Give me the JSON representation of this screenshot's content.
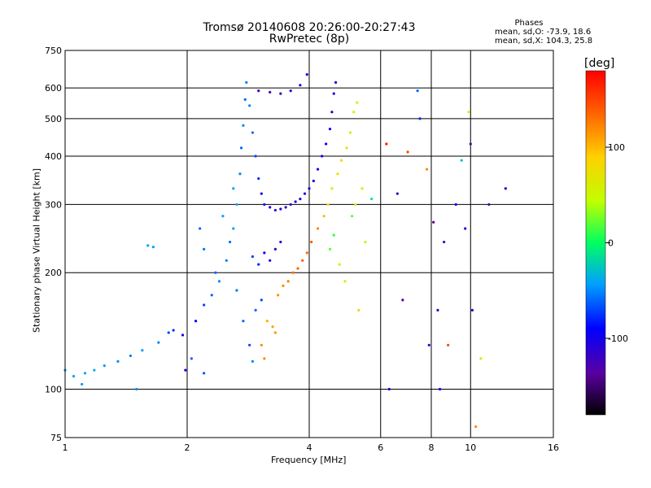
{
  "chart_data": {
    "type": "scatter",
    "title": "Tromsø 20140608 20:26:00-20:27:43",
    "subtitle": "RwPretec (8p)",
    "xlabel": "Frequency [MHz]",
    "ylabel": "Stationary phase Virtual Height [km]",
    "x_scale": "log2",
    "y_scale": "log",
    "xlim": [
      1,
      16
    ],
    "ylim": [
      75,
      750
    ],
    "x_ticks": [
      1,
      2,
      4,
      6,
      8,
      10,
      16
    ],
    "x_tick_labels": [
      "1",
      "2",
      "4",
      "6",
      "8",
      "10",
      "16"
    ],
    "y_ticks": [
      75,
      100,
      200,
      300,
      400,
      500,
      600,
      750
    ],
    "y_tick_labels": [
      "75",
      "100",
      "200",
      "300",
      "400",
      "500",
      "600",
      "750"
    ],
    "grid": true,
    "phase_box": {
      "heading": "Phases",
      "o_stats": "mean, sd,O: -73.9, 18.6",
      "x_stats": "mean, sd,X: 104.3, 25.8"
    },
    "colorbar": {
      "unit": "[deg]",
      "range": [
        -180,
        180
      ],
      "ticks": [
        100,
        0,
        -100
      ],
      "tick_labels": [
        "100",
        "0",
        "-100"
      ]
    },
    "series": [
      {
        "points": [
          [
            1.0,
            112,
            -40
          ],
          [
            1.05,
            108,
            -40
          ],
          [
            1.1,
            103,
            -45
          ],
          [
            1.12,
            110,
            -40
          ],
          [
            1.18,
            112,
            -35
          ],
          [
            1.25,
            115,
            -45
          ],
          [
            1.35,
            118,
            -50
          ],
          [
            1.45,
            122,
            -55
          ],
          [
            1.55,
            126,
            -45
          ],
          [
            1.6,
            235,
            -40
          ],
          [
            1.65,
            233,
            -45
          ],
          [
            1.7,
            132,
            -50
          ],
          [
            1.8,
            140,
            -70
          ],
          [
            1.85,
            142,
            -80
          ],
          [
            1.95,
            138,
            -90
          ],
          [
            1.98,
            112,
            -100
          ],
          [
            2.05,
            120,
            -60
          ],
          [
            2.1,
            150,
            -90
          ],
          [
            2.2,
            165,
            -70
          ],
          [
            2.3,
            175,
            -60
          ],
          [
            2.4,
            190,
            -50
          ],
          [
            2.5,
            215,
            -55
          ],
          [
            2.55,
            240,
            -60
          ],
          [
            2.6,
            260,
            -40
          ],
          [
            2.65,
            300,
            -40
          ],
          [
            2.7,
            360,
            -50
          ],
          [
            2.72,
            420,
            -60
          ],
          [
            2.75,
            480,
            -50
          ],
          [
            2.78,
            560,
            -60
          ],
          [
            2.8,
            620,
            -55
          ],
          [
            2.85,
            540,
            -50
          ],
          [
            2.9,
            460,
            -60
          ],
          [
            2.95,
            400,
            -70
          ],
          [
            3.0,
            350,
            -80
          ],
          [
            3.05,
            320,
            -90
          ],
          [
            3.1,
            300,
            -100
          ],
          [
            3.2,
            295,
            -110
          ],
          [
            3.3,
            290,
            -115
          ],
          [
            3.4,
            292,
            -110
          ],
          [
            3.5,
            295,
            -112
          ],
          [
            3.6,
            300,
            -115
          ],
          [
            3.7,
            305,
            -110
          ],
          [
            3.8,
            310,
            -105
          ],
          [
            3.9,
            320,
            -100
          ],
          [
            4.0,
            330,
            -100
          ],
          [
            4.1,
            345,
            -100
          ],
          [
            4.2,
            370,
            -95
          ],
          [
            4.3,
            400,
            -100
          ],
          [
            4.4,
            430,
            -95
          ],
          [
            4.5,
            470,
            -100
          ],
          [
            4.55,
            520,
            -105
          ],
          [
            4.6,
            580,
            -110
          ],
          [
            4.65,
            620,
            -100
          ],
          [
            3.0,
            590,
            -120
          ],
          [
            3.2,
            585,
            -130
          ],
          [
            3.4,
            580,
            -125
          ],
          [
            3.6,
            590,
            -120
          ],
          [
            3.8,
            610,
            -110
          ],
          [
            3.95,
            650,
            -100
          ],
          [
            2.9,
            220,
            -70
          ],
          [
            3.0,
            210,
            -80
          ],
          [
            3.1,
            225,
            -95
          ],
          [
            3.2,
            215,
            -100
          ],
          [
            3.3,
            230,
            -110
          ],
          [
            3.4,
            240,
            -100
          ],
          [
            2.95,
            160,
            -60
          ],
          [
            3.05,
            170,
            -70
          ],
          [
            3.15,
            150,
            105
          ],
          [
            3.25,
            145,
            110
          ],
          [
            3.3,
            140,
            115
          ],
          [
            3.35,
            175,
            115
          ],
          [
            3.45,
            185,
            120
          ],
          [
            3.55,
            190,
            125
          ],
          [
            3.65,
            200,
            130
          ],
          [
            3.75,
            205,
            135
          ],
          [
            3.85,
            215,
            140
          ],
          [
            3.95,
            225,
            130
          ],
          [
            4.05,
            240,
            140
          ],
          [
            4.2,
            260,
            120
          ],
          [
            4.35,
            280,
            100
          ],
          [
            4.45,
            300,
            80
          ],
          [
            4.55,
            330,
            60
          ],
          [
            4.7,
            360,
            70
          ],
          [
            4.8,
            390,
            90
          ],
          [
            4.95,
            420,
            75
          ],
          [
            5.05,
            460,
            65
          ],
          [
            5.15,
            520,
            55
          ],
          [
            5.25,
            550,
            40
          ],
          [
            4.5,
            230,
            20
          ],
          [
            4.6,
            250,
            10
          ],
          [
            4.75,
            210,
            40
          ],
          [
            4.9,
            190,
            70
          ],
          [
            5.1,
            280,
            20
          ],
          [
            5.2,
            300,
            50
          ],
          [
            5.4,
            330,
            60
          ],
          [
            5.5,
            240,
            40
          ],
          [
            5.3,
            160,
            90
          ],
          [
            5.7,
            310,
            -10
          ],
          [
            6.2,
            430,
            170
          ],
          [
            6.3,
            100,
            -100
          ],
          [
            6.6,
            320,
            -120
          ],
          [
            6.8,
            170,
            -130
          ],
          [
            7.0,
            410,
            150
          ],
          [
            7.4,
            590,
            -60
          ],
          [
            7.5,
            500,
            -80
          ],
          [
            7.8,
            370,
            120
          ],
          [
            7.9,
            130,
            -110
          ],
          [
            8.1,
            270,
            -140
          ],
          [
            8.3,
            160,
            -120
          ],
          [
            8.4,
            100,
            -100
          ],
          [
            8.6,
            240,
            -125
          ],
          [
            8.8,
            130,
            150
          ],
          [
            9.2,
            300,
            -90
          ],
          [
            9.5,
            390,
            -30
          ],
          [
            9.7,
            260,
            -110
          ],
          [
            9.9,
            520,
            60
          ],
          [
            10.0,
            430,
            -140
          ],
          [
            10.1,
            160,
            -120
          ],
          [
            10.3,
            80,
            120
          ],
          [
            10.6,
            120,
            60
          ],
          [
            11.1,
            300,
            -120
          ],
          [
            12.2,
            330,
            -110
          ],
          [
            2.15,
            260,
            -60
          ],
          [
            2.2,
            230,
            -55
          ],
          [
            2.35,
            200,
            -60
          ],
          [
            2.45,
            280,
            -45
          ],
          [
            2.6,
            330,
            -40
          ],
          [
            2.65,
            180,
            -55
          ],
          [
            2.75,
            150,
            -60
          ],
          [
            2.85,
            130,
            -70
          ],
          [
            3.05,
            130,
            120
          ],
          [
            3.1,
            120,
            120
          ],
          [
            2.9,
            118,
            -50
          ],
          [
            2.2,
            110,
            -65
          ],
          [
            1.5,
            100,
            -50
          ]
        ]
      }
    ]
  }
}
